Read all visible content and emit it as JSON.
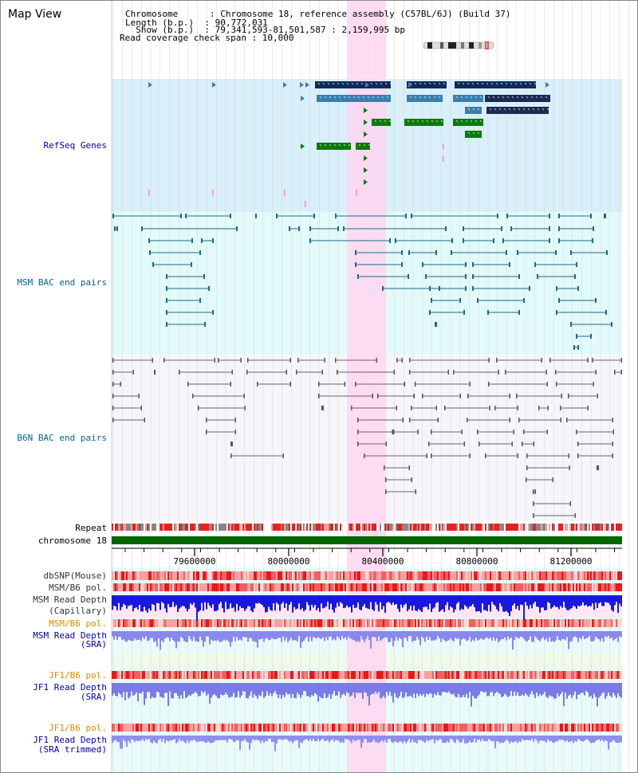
{
  "page": {
    "title": "Map View"
  },
  "info": {
    "line1": "Chromosome      : Chromosome 18, reference assembly (C57BL/6J) (Build 37)",
    "line2": "Length (b.p.)  : 90,772,031",
    "line3": "  Show (b.p.)  : 79,341,593-81,501,587 : 2,159,995 bp",
    "line4": "Read coverage check span : 10,000"
  },
  "tracks": {
    "refseq": "RefSeq Genes",
    "msm_bac": "MSM BAC end pairs",
    "b6n_bac": "B6N BAC end pairs",
    "repeat": "Repeat",
    "chromosome": "chromosome 18",
    "dbsnp": "dbSNP(Mouse)",
    "msm_pol1": "MSM/B6 pol.",
    "msm_depth_cap_1": "MSM Read Depth",
    "msm_depth_cap_2": "(Capillary)",
    "msm_pol2": "MSM/B6 pol.",
    "msm_depth_sra_1": "MSM Read Depth",
    "msm_depth_sra_2": "(SRA)",
    "jf1_pol1": "JF1/B6 pol.",
    "jf1_depth_1": "JF1 Read Depth",
    "jf1_depth_2": "(SRA)",
    "jf1_pol2": "JF1/B6 pol.",
    "jf1_trim_1": "JF1 Read Depth",
    "jf1_trim_2": "(SRA trimmed)"
  },
  "axis": {
    "ticks": [
      "79600000",
      "80000000",
      "80400000",
      "80800000",
      "81200000"
    ]
  },
  "colors": {
    "refseq_bg": "#d9effa",
    "msm_bg": "#e3fafa",
    "b6n_bg": "#f6f6fa",
    "highlight": "#ffd6f0",
    "gene_navy": "#0d2a5a",
    "gene_blue": "#3a7fae",
    "gene_green": "#0a7a0a",
    "msm_line": "#1a6a8a",
    "b6n_line": "#666666",
    "chrom_green": "#006600",
    "depth_blue": "#1818e0",
    "depth_violet": "#8888ee",
    "label_blue": "#0000aa",
    "label_teal": "#006688",
    "label_orange": "#dd8800"
  }
}
